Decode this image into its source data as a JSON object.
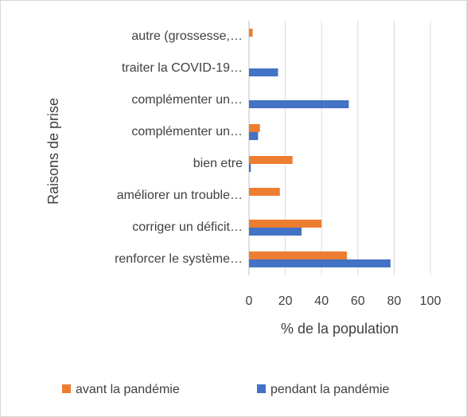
{
  "chart_data": {
    "type": "bar",
    "orientation": "horizontal",
    "categories": [
      "autre (grossesse,…",
      "traiter la COVID-19…",
      "complémenter un…",
      "complémenter un…",
      "bien etre",
      "améliorer un trouble…",
      "corriger un déficit…",
      "renforcer le système…"
    ],
    "series": [
      {
        "name": "avant la pandémie",
        "color": "#ed7d31",
        "values": [
          2,
          null,
          null,
          6,
          24,
          17,
          40,
          54
        ]
      },
      {
        "name": "pendant la pandémie",
        "color": "#4472c4",
        "values": [
          null,
          16,
          55,
          5,
          1,
          null,
          29,
          78
        ]
      }
    ],
    "xlabel": "% de la population",
    "ylabel": "Raisons de prise",
    "xlim": [
      0,
      100
    ],
    "xticks": [
      0,
      20,
      40,
      60,
      80,
      100
    ],
    "grid": true,
    "legend": "bottom"
  }
}
